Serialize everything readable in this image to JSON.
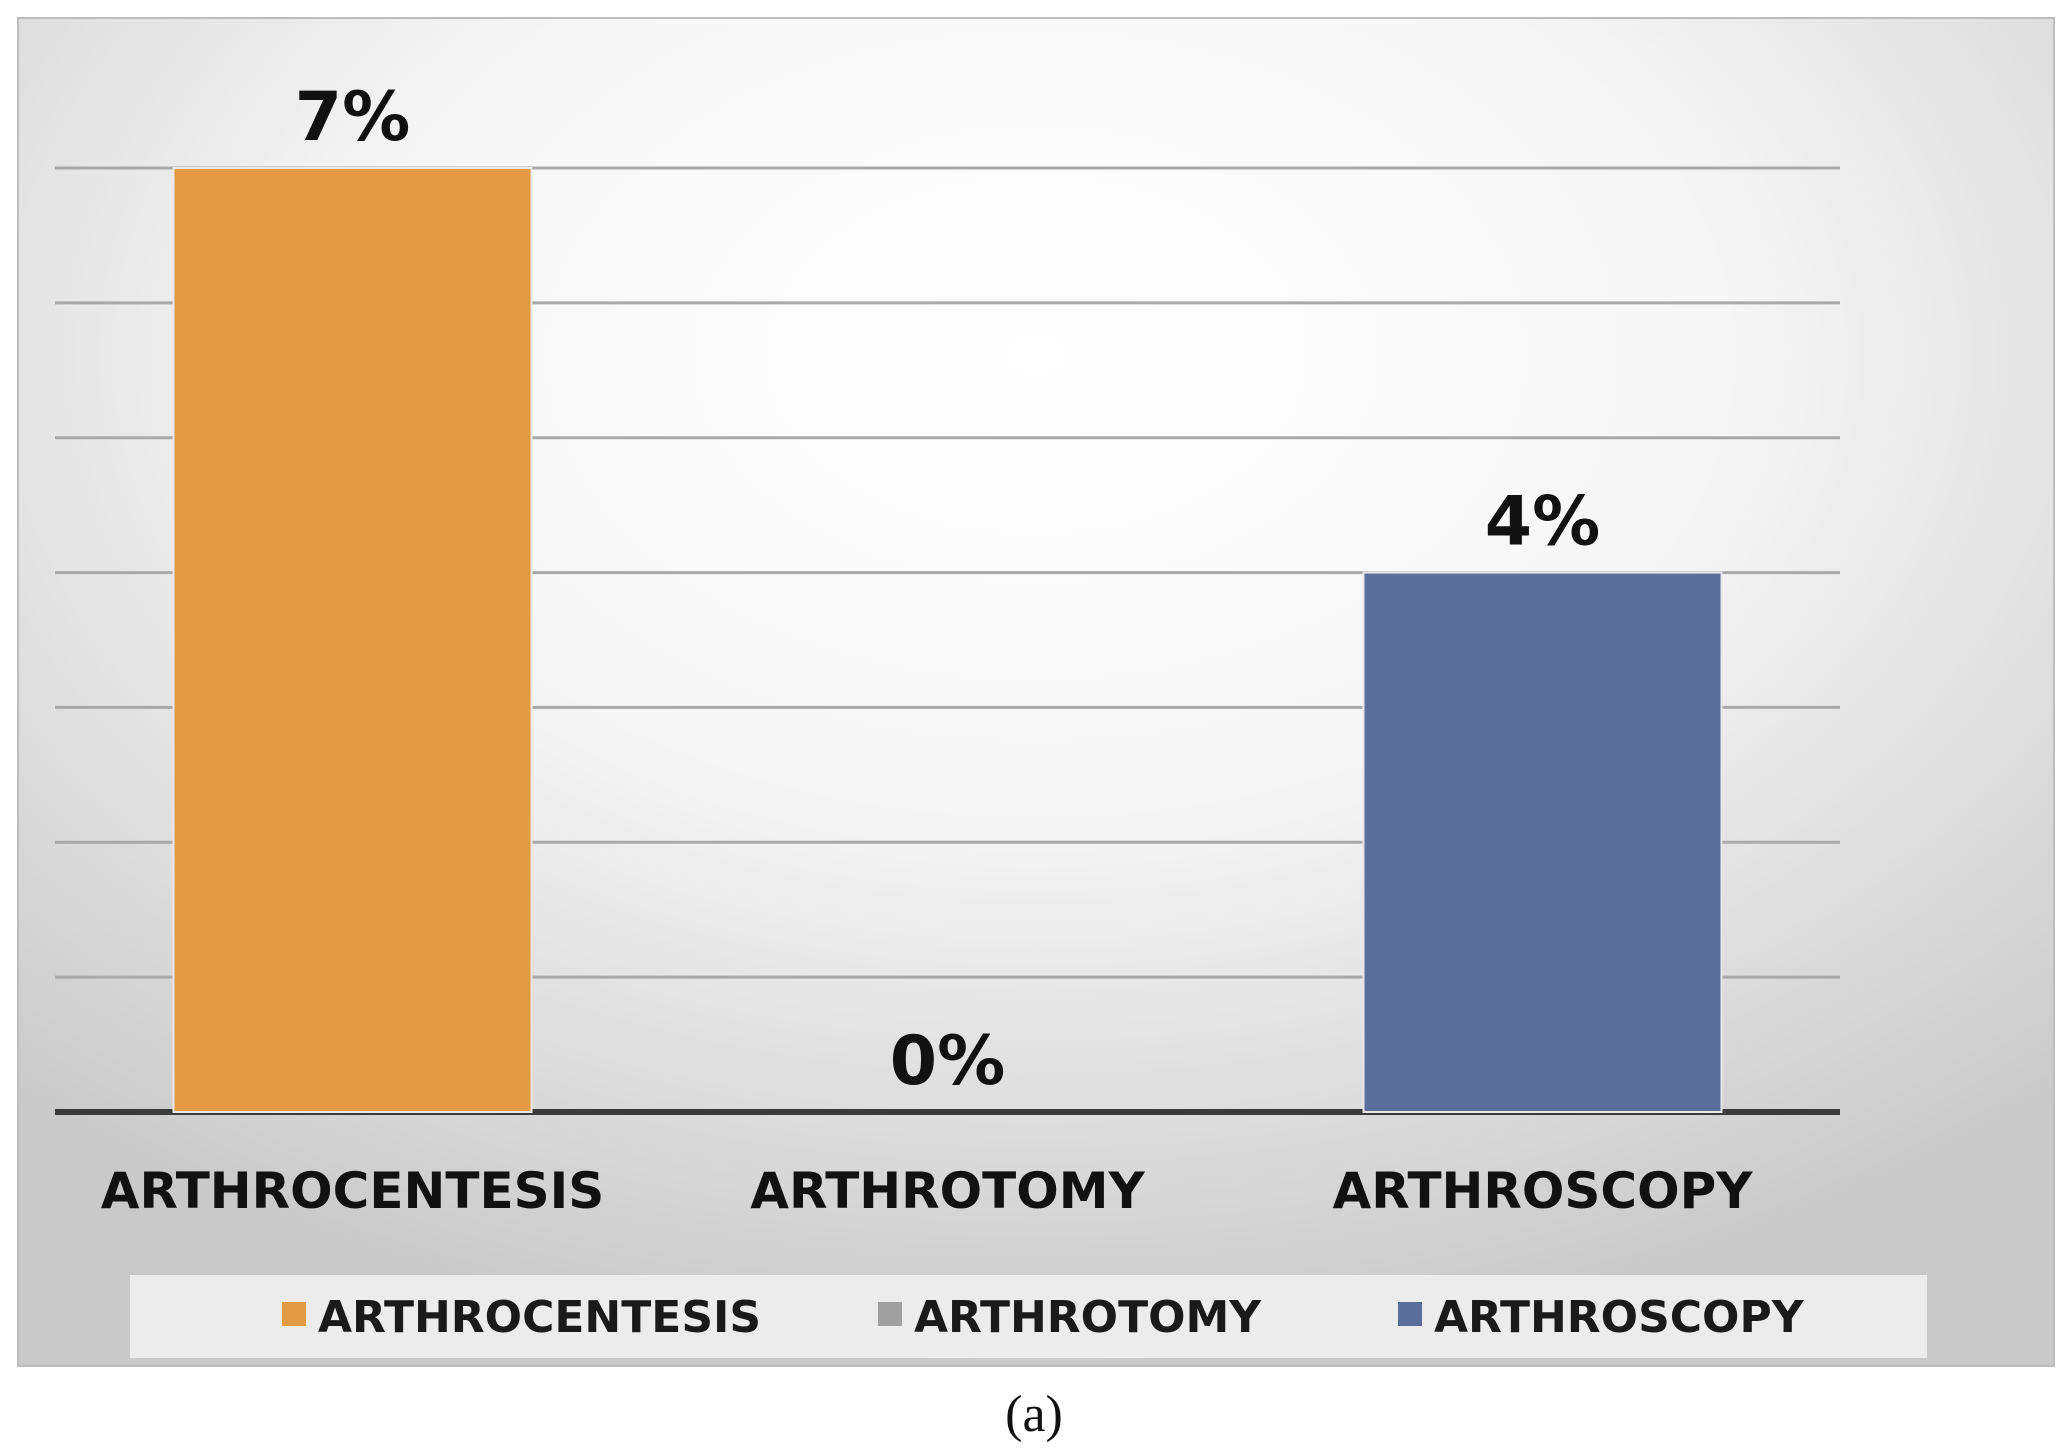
{
  "chart_data": {
    "type": "bar",
    "categories": [
      "ARTHROCENTESIS",
      "ARTHROTOMY",
      "ARTHROSCOPY"
    ],
    "values": [
      7,
      0,
      4
    ],
    "value_labels": [
      "7%",
      "0%",
      "4%"
    ],
    "ylim": [
      0,
      7
    ],
    "grid": true,
    "legend_position": "bottom",
    "legend": [
      "ARTHROCENTESIS",
      "ARTHROTOMY",
      "ARTHROSCOPY"
    ],
    "colors": [
      "#E39A43",
      "#A0A0A0",
      "#5C6E9C"
    ],
    "title": "",
    "xlabel": "",
    "ylabel": ""
  },
  "caption": "(a)"
}
